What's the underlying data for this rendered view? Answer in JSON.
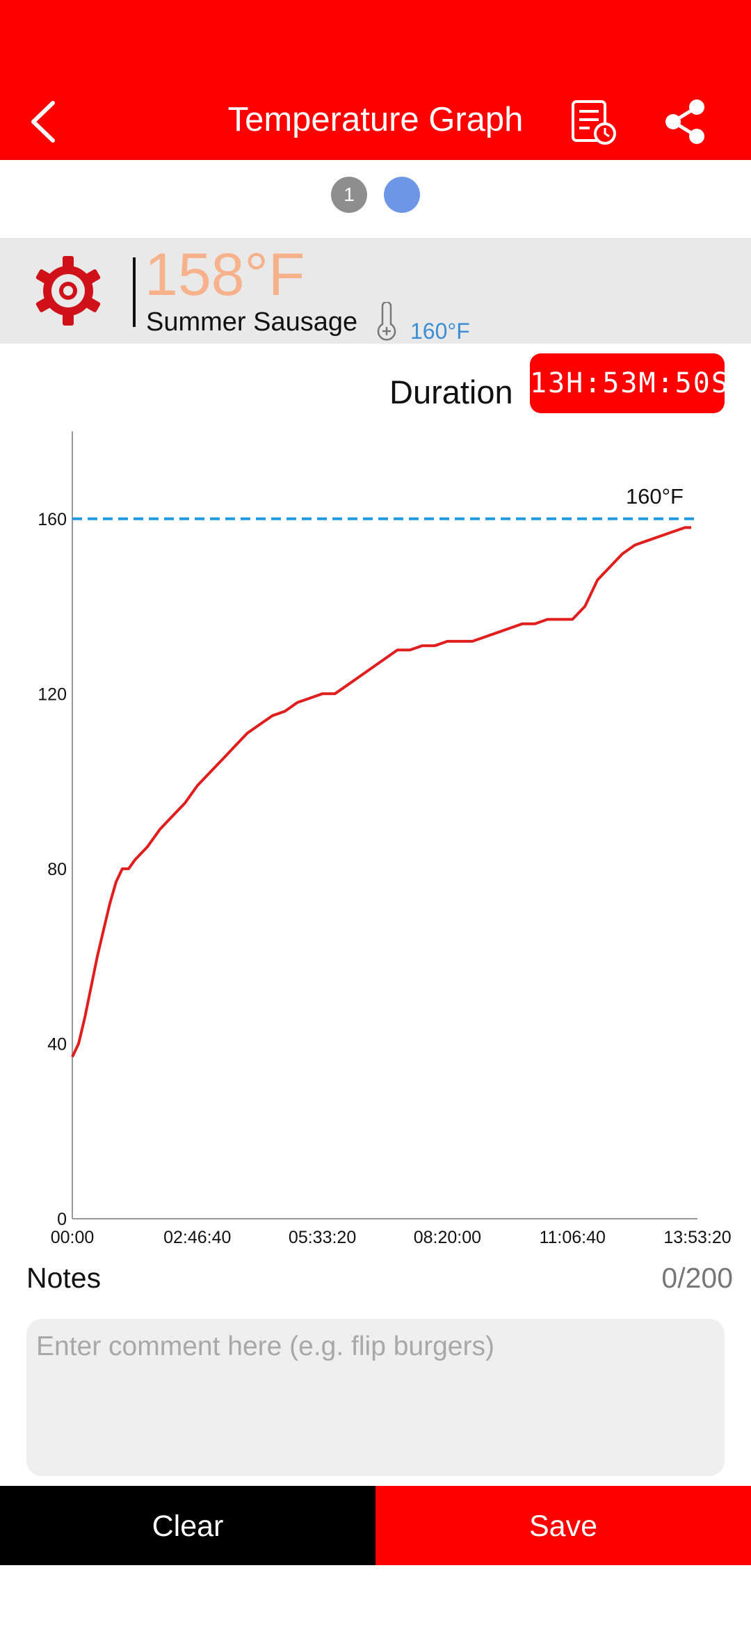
{
  "header": {
    "title": "Temperature Graph",
    "back_icon": "chevron-left-icon",
    "history_icon": "history-icon",
    "share_icon": "share-icon",
    "background_color": "#ff0000"
  },
  "pager": {
    "pages": [
      "1",
      ""
    ],
    "active_index": 1
  },
  "probe": {
    "current_temp": "158°F",
    "name": "Summer Sausage",
    "target_temp": "160°F",
    "settings_icon": "gear-icon",
    "thermometer_icon": "thermometer-icon",
    "temp_color": "#f7b28c",
    "target_color": "#3a8fd6"
  },
  "duration": {
    "label": "Duration",
    "value": "13H:53M:50S"
  },
  "chart_data": {
    "type": "line",
    "ylim": [
      0,
      180
    ],
    "yticks": [
      0,
      40,
      80,
      120,
      160
    ],
    "ytick_labels": [
      "0",
      "40",
      "80",
      "120",
      "160"
    ],
    "xlim_seconds": [
      0,
      50000
    ],
    "xtick_labels": [
      "00:00",
      "02:46:40",
      "05:33:20",
      "08:20:00",
      "11:06:40",
      "13:53:20"
    ],
    "target_line": {
      "value": 160,
      "label": "160°F",
      "color": "#1e9be0",
      "style": "dashed"
    },
    "series": [
      {
        "color": "#e01e1e",
        "x_seconds": [
          0,
          500,
          1000,
          1500,
          2000,
          2500,
          3000,
          3500,
          4000,
          4500,
          5000,
          6000,
          7000,
          8000,
          9000,
          10000,
          11000,
          12000,
          13000,
          14000,
          15000,
          16000,
          17000,
          18000,
          19000,
          20000,
          21000,
          22000,
          23000,
          24000,
          25000,
          26000,
          27000,
          28000,
          29000,
          30000,
          31000,
          32000,
          33000,
          34000,
          35000,
          36000,
          37000,
          38000,
          39000,
          40000,
          41000,
          42000,
          43000,
          44000,
          45000,
          46000,
          47000,
          48000,
          49000,
          49500
        ],
        "values": [
          37,
          40,
          46,
          53,
          60,
          66,
          72,
          77,
          80,
          80,
          82,
          85,
          89,
          92,
          95,
          99,
          102,
          105,
          108,
          111,
          113,
          115,
          116,
          118,
          119,
          120,
          120,
          122,
          124,
          126,
          128,
          130,
          130,
          131,
          131,
          132,
          132,
          132,
          133,
          134,
          135,
          136,
          136,
          137,
          137,
          137,
          140,
          146,
          149,
          152,
          154,
          155,
          156,
          157,
          158,
          158
        ]
      }
    ]
  },
  "notes": {
    "label": "Notes",
    "count": "0/200",
    "placeholder": "Enter comment here (e.g. flip burgers)"
  },
  "actions": {
    "clear_label": "Clear",
    "save_label": "Save"
  }
}
